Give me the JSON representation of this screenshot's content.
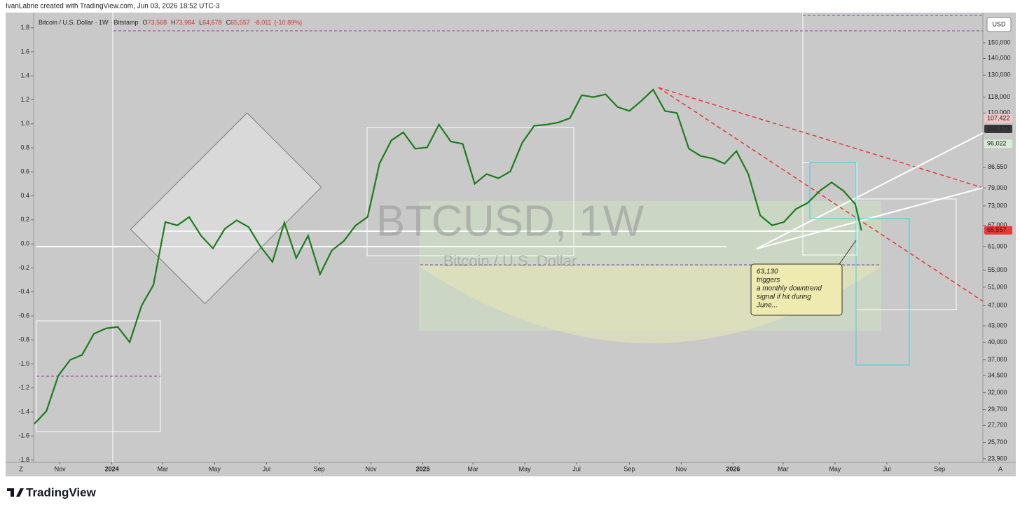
{
  "header": "IvanLabrie created with TradingView.com, Jun 03, 2026 18:52 UTC-3",
  "footer_brand": "TradingView",
  "chart_data": {
    "type": "line",
    "title": "Bitcoin / U.S. Dollar · 1W · Bitstamp",
    "ohlc": [
      {
        "key": "O",
        "value": 73568,
        "label": "73,568"
      },
      {
        "key": "H",
        "value": 73984,
        "label": "73,984"
      },
      {
        "key": "L",
        "value": 64678,
        "label": "64,678"
      },
      {
        "key": "C",
        "value": 65557,
        "label": "65,557"
      }
    ],
    "change": {
      "value": -8011,
      "label": "-8,011"
    },
    "change_pct": {
      "value": -10.89,
      "label": "(-10.89%)"
    },
    "watermark": "BTCUSD, 1W",
    "watermark_sub": "Bitcoin / U.S. Dollar",
    "currency": "USD",
    "corner_buttons": [
      "Z",
      "A"
    ],
    "color": "#1b7d1b",
    "x": [
      "2023-10-02",
      "2023-10-16",
      "2023-10-30",
      "2023-11-13",
      "2023-11-27",
      "2023-12-11",
      "2023-12-25",
      "2024-01-08",
      "2024-01-22",
      "2024-02-05",
      "2024-02-19",
      "2024-03-04",
      "2024-03-18",
      "2024-04-01",
      "2024-04-15",
      "2024-04-29",
      "2024-05-13",
      "2024-05-27",
      "2024-06-10",
      "2024-06-24",
      "2024-07-08",
      "2024-07-22",
      "2024-08-05",
      "2024-08-19",
      "2024-09-02",
      "2024-09-16",
      "2024-09-30",
      "2024-10-14",
      "2024-10-28",
      "2024-11-11",
      "2024-11-25",
      "2024-12-09",
      "2024-12-23",
      "2025-01-06",
      "2025-01-20",
      "2025-02-03",
      "2025-02-17",
      "2025-03-03",
      "2025-03-17",
      "2025-03-31",
      "2025-04-14",
      "2025-04-28",
      "2025-05-12",
      "2025-05-26",
      "2025-06-09",
      "2025-06-23",
      "2025-07-07",
      "2025-07-21",
      "2025-08-04",
      "2025-08-18",
      "2025-09-01",
      "2025-09-15",
      "2025-09-29",
      "2025-10-13",
      "2025-10-27",
      "2025-11-10",
      "2025-11-24",
      "2025-12-08",
      "2025-12-22",
      "2026-01-05",
      "2026-01-19",
      "2026-02-02",
      "2026-02-16",
      "2026-03-02",
      "2026-03-16",
      "2026-03-30",
      "2026-04-13",
      "2026-04-27",
      "2026-05-11",
      "2026-05-25",
      "2026-06-01"
    ],
    "values": [
      27900,
      29500,
      34500,
      37000,
      37800,
      41500,
      42500,
      42800,
      40000,
      47000,
      51500,
      68000,
      67000,
      69500,
      64000,
      60500,
      66000,
      68500,
      66500,
      61000,
      57000,
      67800,
      58000,
      64000,
      54000,
      60000,
      62500,
      67000,
      69500,
      88000,
      97500,
      101000,
      94000,
      94500,
      104500,
      97000,
      96000,
      80500,
      84000,
      82500,
      85000,
      96500,
      104000,
      104500,
      105500,
      107500,
      119000,
      118000,
      119500,
      113000,
      111000,
      116000,
      122000,
      111000,
      110000,
      94000,
      91000,
      90000,
      88000,
      93000,
      84000,
      70000,
      67000,
      68000,
      72000,
      74000,
      78000,
      81000,
      78000,
      73500,
      65557
    ],
    "xlim": [
      "2023-10-01",
      "2026-10-22"
    ],
    "xticks": [
      {
        "value": "2023-11-01",
        "label": "Nov"
      },
      {
        "value": "2024-01-01",
        "label": "2024"
      },
      {
        "value": "2024-03-01",
        "label": "Mar"
      },
      {
        "value": "2024-05-01",
        "label": "May"
      },
      {
        "value": "2024-07-01",
        "label": "Jul"
      },
      {
        "value": "2024-09-01",
        "label": "Sep"
      },
      {
        "value": "2024-11-01",
        "label": "Nov"
      },
      {
        "value": "2025-01-01",
        "label": "2025"
      },
      {
        "value": "2025-03-01",
        "label": "Mar"
      },
      {
        "value": "2025-05-01",
        "label": "May"
      },
      {
        "value": "2025-07-01",
        "label": "Jul"
      },
      {
        "value": "2025-09-01",
        "label": "Sep"
      },
      {
        "value": "2025-11-01",
        "label": "Nov"
      },
      {
        "value": "2026-01-01",
        "label": "2026"
      },
      {
        "value": "2026-03-01",
        "label": "Mar"
      },
      {
        "value": "2026-05-01",
        "label": "May"
      },
      {
        "value": "2026-07-01",
        "label": "Jul"
      },
      {
        "value": "2026-09-01",
        "label": "Sep"
      }
    ],
    "log_scale": true,
    "ylim": [
      23530,
      173500
    ],
    "yticks": [
      {
        "value": 150000,
        "label": "150,000"
      },
      {
        "value": 140000,
        "label": "140,000"
      },
      {
        "value": 130000,
        "label": "130,000"
      },
      {
        "value": 118000,
        "label": "118,000"
      },
      {
        "value": 110000,
        "label": "110,000"
      },
      {
        "value": 86550,
        "label": "86,550"
      },
      {
        "value": 79000,
        "label": "79,000"
      },
      {
        "value": 73000,
        "label": "73,000"
      },
      {
        "value": 67000,
        "label": "67,000"
      },
      {
        "value": 61000,
        "label": "61,000"
      },
      {
        "value": 55000,
        "label": "55,000"
      },
      {
        "value": 51000,
        "label": "51,000"
      },
      {
        "value": 47000,
        "label": "47,000"
      },
      {
        "value": 43000,
        "label": "43,000"
      },
      {
        "value": 40000,
        "label": "40,000"
      },
      {
        "value": 37000,
        "label": "37,000"
      },
      {
        "value": 34500,
        "label": "34,500"
      },
      {
        "value": 32000,
        "label": "32,000"
      },
      {
        "value": 29700,
        "label": "29,700"
      },
      {
        "value": 27700,
        "label": "27,700"
      },
      {
        "value": 25700,
        "label": "25,700"
      },
      {
        "value": 23900,
        "label": "23,900"
      }
    ],
    "price_labels": [
      {
        "value": 107422,
        "label": "107,422",
        "color": "#f4c7c7",
        "text_color": "#333333"
      },
      {
        "value": 102573,
        "label": "102,573",
        "color": "#3a3a3a",
        "text_color": "#ffffff"
      },
      {
        "value": 96022,
        "label": "96,022",
        "color": "#d6ecd6",
        "text_color": "#222222"
      },
      {
        "value": 65557,
        "label": "65,557",
        "color": "#e53935",
        "text_color": "#ffffff"
      }
    ],
    "y2lim": [
      -1.82,
      1.95
    ],
    "y2ticks": [
      1.8,
      1.6,
      1.4,
      1.2,
      {
        "value": 1,
        "label": "1.0"
      },
      0.8,
      0.6,
      0.4,
      0.2,
      {
        "value": 0,
        "label": "0.0"
      },
      -0.2,
      -0.4,
      -0.6,
      -0.8,
      {
        "value": -1,
        "label": "-1.0"
      },
      -1.2,
      -1.4,
      -1.6,
      -1.8
    ],
    "annotation": {
      "lines": [
        "63,130",
        "triggers",
        "a monthly downtrend",
        "signal if hit during",
        "June..."
      ]
    }
  }
}
